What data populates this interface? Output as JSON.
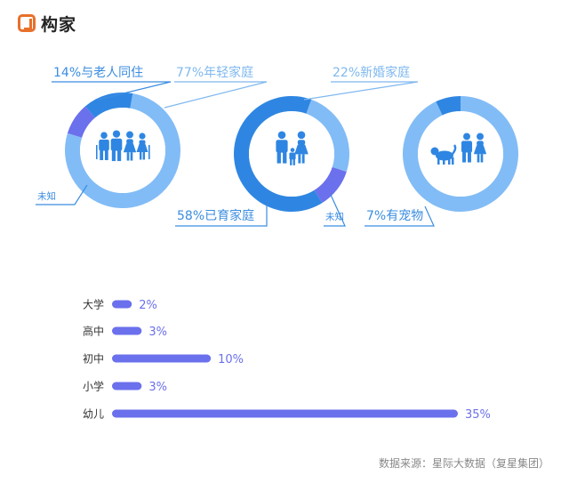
{
  "brand": {
    "name": "构家",
    "icon": "logo-icon",
    "color": "#e8702a"
  },
  "colors": {
    "light": "#82bcf6",
    "mid": "#2f86e2",
    "purple": "#6b70ec",
    "bar": "#6b70ec",
    "bar_label": "#6b70ec",
    "callout_text": "#3b8de0",
    "callout_text_light": "#7fb8ef",
    "cat_text": "#333333"
  },
  "chart_data": [
    {
      "type": "pie",
      "subtype": "donut",
      "icon": "family-icon",
      "slices": [
        {
          "label": "77%年轻家庭",
          "value": 77,
          "color": "#82bcf6"
        },
        {
          "label": "未知",
          "value": 9,
          "color": "#6b70ec"
        },
        {
          "label": "14%与老人同住",
          "value": 14,
          "color": "#2f86e2"
        }
      ]
    },
    {
      "type": "pie",
      "subtype": "donut",
      "icon": "parents-child-icon",
      "slices": [
        {
          "label": "22%新婚家庭",
          "value": 22,
          "color": "#82bcf6"
        },
        {
          "label": "未知",
          "value": 10,
          "color": "#6b70ec"
        },
        {
          "label": "58%已育家庭",
          "value": 58,
          "color": "#2f86e2"
        }
      ]
    },
    {
      "type": "pie",
      "subtype": "donut",
      "icon": "dog-couple-icon",
      "slices": [
        {
          "label": "",
          "value": 93,
          "color": "#82bcf6"
        },
        {
          "label": "7%有宠物",
          "value": 7,
          "color": "#2f86e2"
        }
      ]
    },
    {
      "type": "bar",
      "orientation": "horizontal",
      "categories": [
        "大学",
        "高中",
        "初中",
        "小学",
        "幼儿"
      ],
      "values": [
        2,
        3,
        10,
        3,
        35
      ],
      "value_labels": [
        "2%",
        "3%",
        "10%",
        "3%",
        "35%"
      ],
      "xlim": [
        0,
        35
      ]
    }
  ],
  "source_note": "数据来源：星际大数据（复星集团）"
}
